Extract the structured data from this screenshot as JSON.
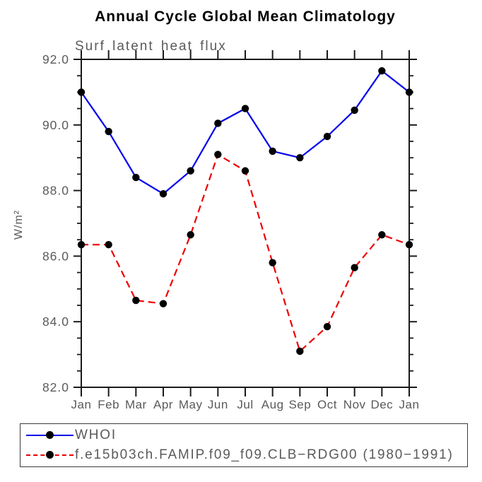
{
  "chart_data": {
    "type": "line",
    "title": "Annual Cycle Global Mean Climatology",
    "subtitle": "Surf latent heat flux",
    "ylabel": "W/m²",
    "xlabel": "",
    "categories": [
      "Jan",
      "Feb",
      "Mar",
      "Apr",
      "May",
      "Jun",
      "Jul",
      "Aug",
      "Sep",
      "Oct",
      "Nov",
      "Dec",
      "Jan"
    ],
    "series": [
      {
        "name": "WHOI",
        "color": "#0000ee",
        "line_style": "solid",
        "marker": "circle",
        "marker_color": "#000000",
        "values": [
          91.0,
          89.8,
          88.4,
          87.9,
          88.6,
          90.05,
          90.5,
          89.2,
          89.0,
          89.65,
          90.45,
          91.65,
          91.0
        ]
      },
      {
        "name": "f.e15b03ch.FAMIP.f09_f09.CLB−RDG00 (1980−1991)",
        "color": "#ee0000",
        "line_style": "dashed",
        "marker": "circle",
        "marker_color": "#000000",
        "values": [
          86.35,
          86.35,
          84.65,
          84.55,
          86.65,
          89.1,
          88.6,
          85.8,
          83.1,
          83.85,
          85.65,
          86.65,
          86.35
        ]
      }
    ],
    "ylim": [
      82.0,
      92.0
    ],
    "yticks": [
      82,
      84,
      86,
      88,
      90,
      92
    ],
    "ytick_labels": [
      "82.0",
      "84.0",
      "86.0",
      "88.0",
      "90.0",
      "92.0"
    ],
    "ytick_minor_step": 0.5,
    "grid": false,
    "legend_position": "bottom"
  },
  "colors": {
    "axis": "#1a1a1a",
    "tick_text": "#5a5a5a",
    "title_text": "#000000"
  }
}
